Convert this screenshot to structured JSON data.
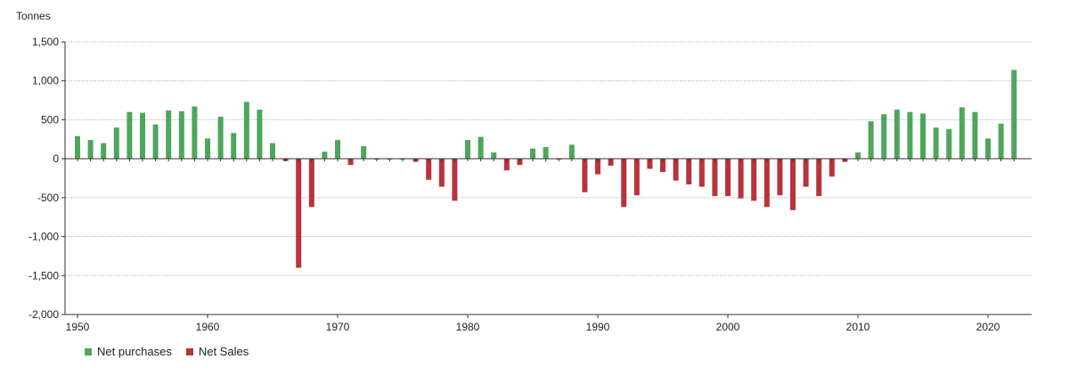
{
  "chart_data": {
    "type": "bar",
    "title": "",
    "ylabel": "Tonnes",
    "xlabel": "",
    "ylim": [
      -2000,
      1500
    ],
    "yticks": [
      1500,
      1000,
      500,
      0,
      -500,
      -1000,
      -1500,
      -2000
    ],
    "ytick_labels": [
      "1,500",
      "1,000",
      "500",
      "0",
      "-500",
      "-1,000",
      "-1,500",
      "-2,000"
    ],
    "xlim": [
      1950,
      2022
    ],
    "xticks": [
      1950,
      1960,
      1970,
      1980,
      1990,
      2000,
      2010,
      2020
    ],
    "xtick_labels": [
      "1950",
      "1960",
      "1970",
      "1980",
      "1990",
      "2000",
      "2010",
      "2020"
    ],
    "grid": true,
    "legend_placement": "bottom-left",
    "series": [
      {
        "name": "Net purchases",
        "color": "#4ea65a"
      },
      {
        "name": "Net Sales",
        "color": "#b8333a"
      }
    ],
    "x": [
      1950,
      1951,
      1952,
      1953,
      1954,
      1955,
      1956,
      1957,
      1958,
      1959,
      1960,
      1961,
      1962,
      1963,
      1964,
      1965,
      1966,
      1967,
      1968,
      1969,
      1970,
      1971,
      1972,
      1973,
      1974,
      1975,
      1976,
      1977,
      1978,
      1979,
      1980,
      1981,
      1982,
      1983,
      1984,
      1985,
      1986,
      1987,
      1988,
      1989,
      1990,
      1991,
      1992,
      1993,
      1994,
      1995,
      1996,
      1997,
      1998,
      1999,
      2000,
      2001,
      2002,
      2003,
      2004,
      2005,
      2006,
      2007,
      2008,
      2009,
      2010,
      2011,
      2012,
      2013,
      2014,
      2015,
      2016,
      2017,
      2018,
      2019,
      2020,
      2021,
      2022
    ],
    "values": [
      290,
      240,
      200,
      400,
      600,
      590,
      440,
      620,
      610,
      670,
      260,
      540,
      330,
      730,
      630,
      200,
      -30,
      -1400,
      -620,
      90,
      240,
      -80,
      160,
      -10,
      -10,
      -10,
      -40,
      -270,
      -360,
      -540,
      240,
      280,
      80,
      -150,
      -80,
      130,
      150,
      -10,
      180,
      -430,
      -200,
      -90,
      -620,
      -470,
      -130,
      -170,
      -280,
      -330,
      -360,
      -480,
      -480,
      -510,
      -540,
      -620,
      -470,
      -660,
      -360,
      -480,
      -230,
      -40,
      80,
      480,
      570,
      630,
      600,
      580,
      400,
      380,
      660,
      600,
      260,
      450,
      1140
    ]
  }
}
